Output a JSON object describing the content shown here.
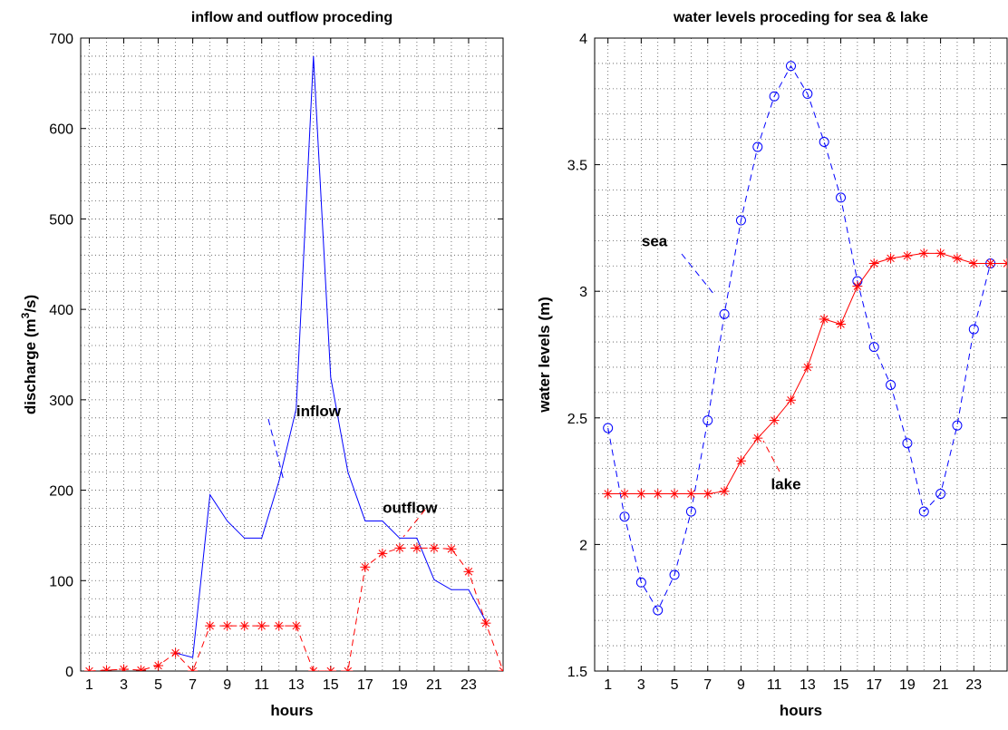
{
  "chart_data": [
    {
      "type": "line",
      "title": "inflow and outflow  proceding",
      "xlabel": "hours",
      "ylabel": "discharge (m",
      "ylabel_sup": "3",
      "ylabel_tail": "/s)",
      "xlim": [
        0.5,
        25
      ],
      "ylim": [
        0,
        700
      ],
      "grid": true,
      "xticks": [
        1,
        3,
        5,
        7,
        9,
        11,
        13,
        15,
        17,
        19,
        21,
        23
      ],
      "yticks": [
        0,
        100,
        200,
        300,
        400,
        500,
        600,
        700
      ],
      "series": [
        {
          "name": "inflow",
          "color": "#0000ff",
          "style": "solid",
          "marker": "none",
          "x": [
            6,
            7,
            8,
            9,
            10,
            11,
            12,
            13,
            14,
            15,
            16,
            17,
            18,
            19,
            20,
            21,
            22,
            23,
            24
          ],
          "y": [
            20,
            15,
            195,
            166,
            147,
            147,
            210,
            290,
            680,
            325,
            220,
            166,
            166,
            147,
            147,
            101,
            90,
            90,
            55
          ]
        },
        {
          "name": "outflow",
          "color": "#ff0000",
          "style": "dashed",
          "marker": "asterisk",
          "x": [
            1,
            2,
            3,
            4,
            5,
            6,
            7,
            8,
            9,
            10,
            11,
            12,
            13,
            14,
            15,
            16,
            17,
            18,
            19,
            20,
            21,
            22,
            23,
            24,
            25
          ],
          "y": [
            0,
            1,
            2,
            1,
            6,
            20,
            0,
            50,
            50,
            50,
            50,
            50,
            50,
            0,
            0,
            0,
            115,
            130,
            136,
            136,
            136,
            135,
            110,
            53,
            0
          ]
        }
      ],
      "annotations": [
        {
          "text": "inflow",
          "x": 14.3,
          "y": 288
        },
        {
          "text": "outflow",
          "x": 19.6,
          "y": 181
        }
      ]
    },
    {
      "type": "line",
      "title": "water levels proceding for sea & lake",
      "xlabel": "hours",
      "ylabel": "water levels (m)",
      "xlim": [
        0.2,
        25
      ],
      "ylim": [
        1.5,
        4
      ],
      "grid": true,
      "xticks": [
        1,
        3,
        5,
        7,
        9,
        11,
        13,
        15,
        17,
        19,
        21,
        23
      ],
      "yticks": [
        1.5,
        2,
        2.5,
        3,
        3.5,
        4
      ],
      "ytick_labels": [
        "1.5",
        "2",
        "2.5",
        "3",
        "3.5",
        "4"
      ],
      "series": [
        {
          "name": "sea",
          "color": "#0000ff",
          "style": "dashed",
          "marker": "circle",
          "x": [
            1,
            2,
            3,
            4,
            5,
            6,
            7,
            8,
            9,
            10,
            11,
            12,
            13,
            14,
            15,
            16,
            17,
            18,
            19,
            20,
            21,
            22,
            23,
            24
          ],
          "y": [
            2.46,
            2.11,
            1.85,
            1.74,
            1.88,
            2.13,
            2.49,
            2.91,
            3.28,
            3.57,
            3.77,
            3.89,
            3.78,
            3.59,
            3.37,
            3.04,
            2.78,
            2.63,
            2.4,
            2.13,
            2.2,
            2.47,
            2.85,
            3.11
          ]
        },
        {
          "name": "lake",
          "color": "#ff0000",
          "style": "solid",
          "marker": "asterisk",
          "x": [
            1,
            2,
            3,
            4,
            5,
            6,
            7,
            8,
            9,
            10,
            11,
            12,
            13,
            14,
            15,
            16,
            17,
            18,
            19,
            20,
            21,
            22,
            23,
            24,
            25
          ],
          "y": [
            2.2,
            2.2,
            2.2,
            2.2,
            2.2,
            2.2,
            2.2,
            2.21,
            2.33,
            2.42,
            2.49,
            2.57,
            2.7,
            2.89,
            2.87,
            3.02,
            3.11,
            3.13,
            3.14,
            3.15,
            3.15,
            3.13,
            3.11,
            3.11,
            3.11
          ]
        }
      ],
      "annotations": [
        {
          "text": "sea",
          "x": 3.8,
          "y": 3.2
        },
        {
          "text": "lake",
          "x": 11.7,
          "y": 2.24
        }
      ]
    }
  ]
}
